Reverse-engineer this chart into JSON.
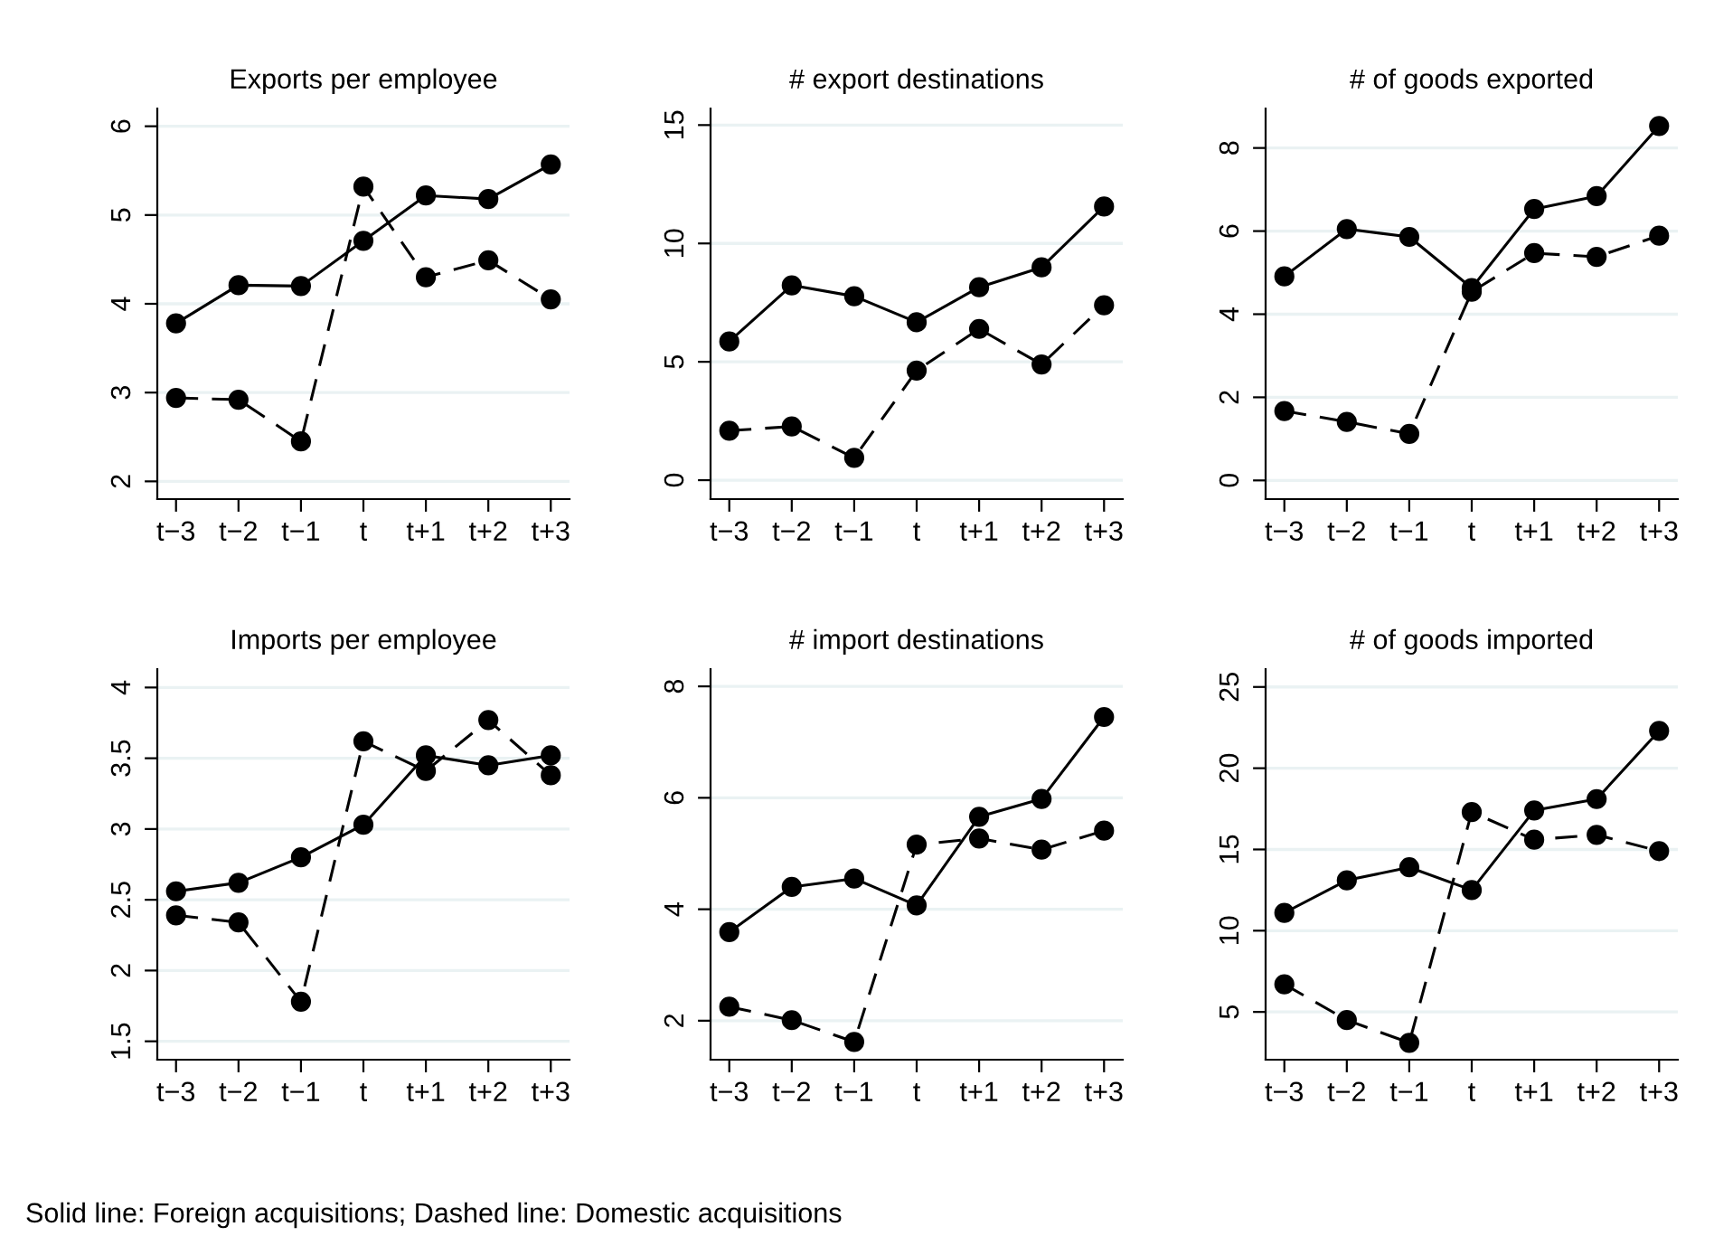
{
  "chart_data": [
    {
      "type": "line",
      "title": "Exports per employee",
      "categories": [
        "t−3",
        "t−2",
        "t−1",
        "t",
        "t+1",
        "t+2",
        "t+3"
      ],
      "ylim": [
        1.8,
        6.2
      ],
      "yticks": [
        2,
        3,
        4,
        5,
        6
      ],
      "grid": "y",
      "marker": "circle",
      "series": [
        {
          "color": "#000000",
          "line_style": "solid",
          "values": [
            3.78,
            4.21,
            4.2,
            4.71,
            5.22,
            5.18,
            5.57
          ]
        },
        {
          "color": "#000000",
          "line_style": "dashed",
          "values": [
            2.94,
            2.92,
            2.45,
            5.32,
            4.3,
            4.49,
            4.05
          ]
        }
      ]
    },
    {
      "type": "line",
      "title": "# export destinations",
      "categories": [
        "t−3",
        "t−2",
        "t−1",
        "t",
        "t+1",
        "t+2",
        "t+3"
      ],
      "ylim": [
        -0.8,
        15.7
      ],
      "yticks": [
        0,
        5,
        10,
        15
      ],
      "grid": "y",
      "marker": "circle",
      "series": [
        {
          "color": "#000000",
          "line_style": "solid",
          "values": [
            5.86,
            8.23,
            7.77,
            6.67,
            8.15,
            8.99,
            11.56
          ]
        },
        {
          "color": "#000000",
          "line_style": "dashed",
          "values": [
            2.09,
            2.27,
            0.94,
            4.63,
            6.39,
            4.89,
            7.39
          ]
        }
      ]
    },
    {
      "type": "line",
      "title": "# of goods exported",
      "categories": [
        "t−3",
        "t−2",
        "t−1",
        "t",
        "t+1",
        "t+2",
        "t+3"
      ],
      "ylim": [
        -0.45,
        8.95
      ],
      "yticks": [
        0,
        2,
        4,
        6,
        8
      ],
      "grid": "y",
      "marker": "circle",
      "series": [
        {
          "color": "#000000",
          "line_style": "solid",
          "values": [
            4.91,
            6.05,
            5.86,
            4.63,
            6.53,
            6.84,
            8.53
          ]
        },
        {
          "color": "#000000",
          "line_style": "dashed",
          "values": [
            1.67,
            1.41,
            1.12,
            4.54,
            5.47,
            5.38,
            5.89
          ]
        }
      ]
    },
    {
      "type": "line",
      "title": "Imports per employee",
      "categories": [
        "t−3",
        "t−2",
        "t−1",
        "t",
        "t+1",
        "t+2",
        "t+3"
      ],
      "ylim": [
        1.37,
        4.13
      ],
      "yticks": [
        1.5,
        2,
        2.5,
        3,
        3.5,
        4
      ],
      "grid": "y",
      "marker": "circle",
      "series": [
        {
          "color": "#000000",
          "line_style": "solid",
          "values": [
            2.56,
            2.62,
            2.8,
            3.03,
            3.52,
            3.45,
            3.52
          ]
        },
        {
          "color": "#000000",
          "line_style": "dashed",
          "values": [
            2.39,
            2.34,
            1.78,
            3.62,
            3.41,
            3.77,
            3.38
          ]
        }
      ]
    },
    {
      "type": "line",
      "title": "# import destinations",
      "categories": [
        "t−3",
        "t−2",
        "t−1",
        "t",
        "t+1",
        "t+2",
        "t+3"
      ],
      "ylim": [
        1.3,
        8.31
      ],
      "yticks": [
        2,
        4,
        6,
        8
      ],
      "grid": "y",
      "marker": "circle",
      "series": [
        {
          "color": "#000000",
          "line_style": "solid",
          "values": [
            3.59,
            4.4,
            4.55,
            4.07,
            5.66,
            5.98,
            7.45
          ]
        },
        {
          "color": "#000000",
          "line_style": "dashed",
          "values": [
            2.25,
            2.01,
            1.62,
            5.16,
            5.27,
            5.07,
            5.41
          ]
        }
      ]
    },
    {
      "type": "line",
      "title": "# of goods imported",
      "categories": [
        "t−3",
        "t−2",
        "t−1",
        "t",
        "t+1",
        "t+2",
        "t+3"
      ],
      "ylim": [
        2.06,
        26.1
      ],
      "yticks": [
        5,
        10,
        15,
        20,
        25
      ],
      "grid": "y",
      "marker": "circle",
      "series": [
        {
          "color": "#000000",
          "line_style": "solid",
          "values": [
            11.1,
            13.1,
            13.9,
            12.5,
            17.4,
            18.1,
            22.3
          ]
        },
        {
          "color": "#000000",
          "line_style": "dashed",
          "values": [
            6.7,
            4.5,
            3.1,
            17.3,
            15.6,
            15.9,
            14.9
          ]
        }
      ],
      "annotations": [
        "Solid line: Foreign acquisitions; Dashed line: Domestic acquisitions"
      ]
    }
  ]
}
